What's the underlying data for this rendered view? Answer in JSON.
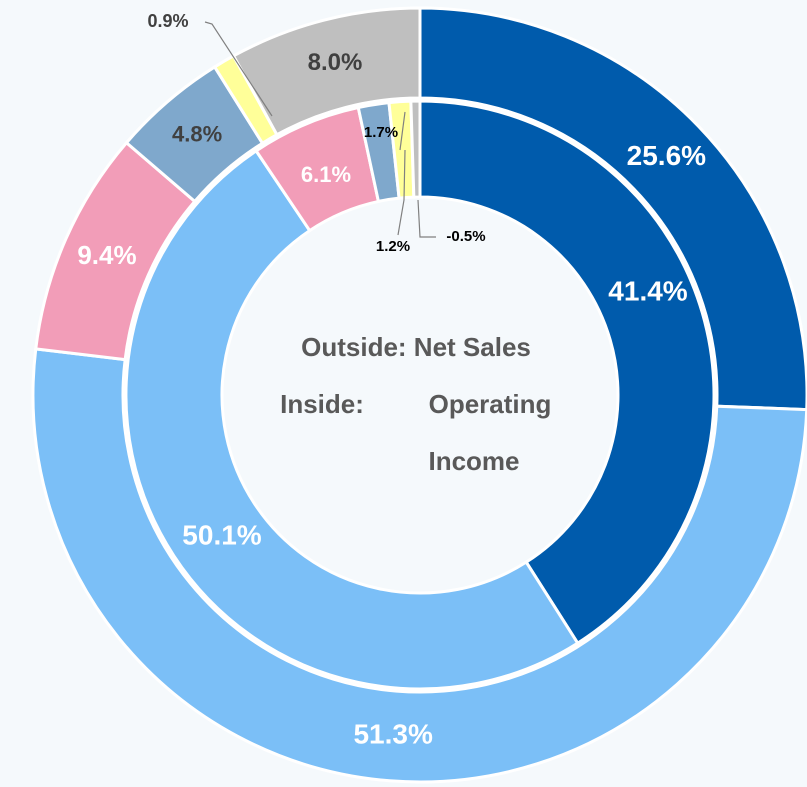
{
  "chart_data": {
    "type": "donut",
    "colors": [
      "#005bac",
      "#7bbff7",
      "#f29db8",
      "#7fa8cc",
      "#ffff99",
      "#bfbfbf"
    ],
    "series": [
      {
        "values": [
          25.6,
          51.3,
          9.4,
          4.8,
          0.9,
          8.0
        ],
        "value_labels": [
          "25.6%",
          "51.3%",
          "9.4%",
          "4.8%",
          "0.9%",
          "8.0%"
        ]
      },
      {
        "values": [
          41.4,
          50.1,
          6.1,
          1.7,
          1.2,
          -0.5
        ],
        "value_labels": [
          "41.4%",
          "50.1%",
          "6.1%",
          "1.7%",
          "1.2%",
          "-0.5%"
        ]
      }
    ],
    "annotations": [
      "Outside: Net Sales",
      "Inside:",
      "Operating",
      "Income"
    ]
  }
}
